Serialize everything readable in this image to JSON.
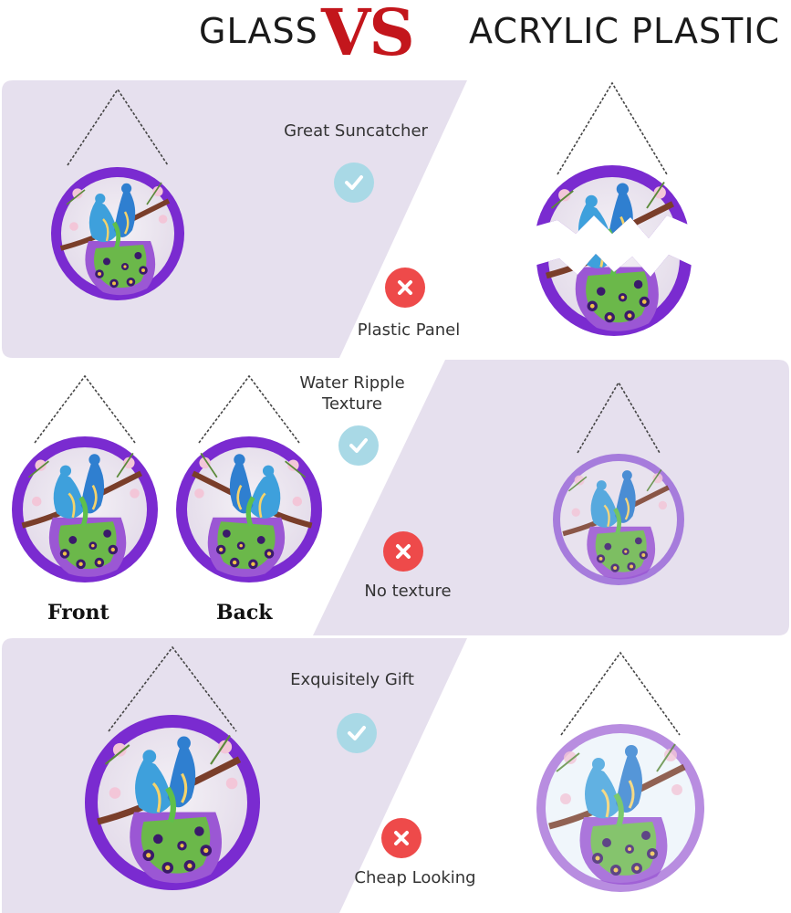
{
  "header": {
    "left": "GLASS",
    "vs": "VS",
    "right": "ACRYLIC PLASTIC"
  },
  "colors": {
    "band": "#e6e0ee",
    "vs_red": "#c3161c",
    "check_bg": "#a9d9e6",
    "cross_bg": "#ee4a4a",
    "rim_purple": "#7a2bd0"
  },
  "rows": [
    {
      "glass_feature": "Great Suncatcher",
      "acrylic_feature": "Plastic Panel",
      "glass_icon": "check-icon",
      "acrylic_icon": "cross-icon"
    },
    {
      "glass_feature": "Water Ripple Texture",
      "acrylic_feature": "No texture",
      "glass_icon": "check-icon",
      "acrylic_icon": "cross-icon",
      "glass_views": [
        "Front",
        "Back"
      ]
    },
    {
      "glass_feature": "Exquisitely Gift",
      "acrylic_feature": "Cheap Looking",
      "glass_icon": "check-icon",
      "acrylic_icon": "cross-icon"
    }
  ]
}
